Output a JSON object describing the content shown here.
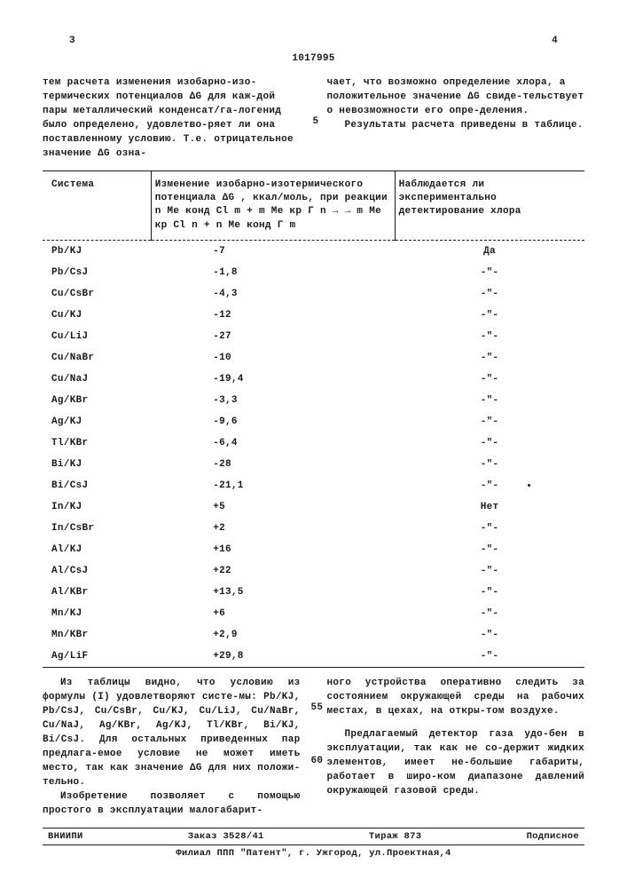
{
  "header": {
    "page_left": "3",
    "doc_number": "1017995",
    "page_right": "4"
  },
  "intro_left": "тем расчета изменения изобарно-изо-термических потенциалов ΔG для каж-дой пары металлический конденсат/га-логенид было определено, удовлетво-ряет ли она поставленному условию. Т.е. отрицательное значение ΔG озна-",
  "intro_right": "чает, что возможно определение хлора, а положительное значение ΔG свиде-тельствует о невозможности его опре-деления.",
  "intro_right_p2": "Результаты расчета приведены в таблице.",
  "line5": "5",
  "table": {
    "headers": {
      "col1": "Система",
      "col2": "Изменение изобарно-изотермического потенциала ΔG , ккал/моль, при реакции  n Me конд Cl m + m Me кр Г n → → m Me кр Cl n + n Me конд Г m",
      "col3": "Наблюдается ли экспериментально детектирование хлора"
    },
    "rows": [
      {
        "sys": "Pb/KJ",
        "dg": "-7",
        "det": "Да"
      },
      {
        "sys": "Pb/CsJ",
        "dg": "-1,8",
        "det": "-\"-"
      },
      {
        "sys": "Cu/CsBr",
        "dg": "-4,3",
        "det": "-\"-"
      },
      {
        "sys": "Cu/KJ",
        "dg": "-12",
        "det": "-\"-"
      },
      {
        "sys": "Cu/LiJ",
        "dg": "-27",
        "det": "-\"-"
      },
      {
        "sys": "Cu/NaBr",
        "dg": "-10",
        "det": "-\"-"
      },
      {
        "sys": "Cu/NaJ",
        "dg": "-19,4",
        "det": "-\"-"
      },
      {
        "sys": "Ag/KBr",
        "dg": "-3,3",
        "det": "-\"-"
      },
      {
        "sys": "Ag/KJ",
        "dg": "-9,6",
        "det": "-\"-"
      },
      {
        "sys": "Tl/KBr",
        "dg": "-6,4",
        "det": "-\"-"
      },
      {
        "sys": "Bi/KJ",
        "dg": "-28",
        "det": "-\"-"
      },
      {
        "sys": "Bi/CsJ",
        "dg": "-21,1",
        "det": "-\"-"
      },
      {
        "sys": "In/KJ",
        "dg": "+5",
        "det": "Нет"
      },
      {
        "sys": "In/CsBr",
        "dg": "+2",
        "det": "-\"-"
      },
      {
        "sys": "Al/KJ",
        "dg": "+16",
        "det": "-\"-"
      },
      {
        "sys": "Al/CsJ",
        "dg": "+22",
        "det": "-\"-"
      },
      {
        "sys": "Al/KBr",
        "dg": "+13,5",
        "det": "-\"-"
      },
      {
        "sys": "Mn/KJ",
        "dg": "+6",
        "det": "-\"-"
      },
      {
        "sys": "Mn/KBr",
        "dg": "+2,9",
        "det": "-\"-"
      },
      {
        "sys": "Ag/LiF",
        "dg": "+29,8",
        "det": "-\"-"
      }
    ]
  },
  "body_left_p1": "Из таблицы видно, что условию из формулы (I) удовлетворяют систе-мы: Pb/KJ, Pb/CsJ, Cu/CsBr, Cu/KJ, Cu/LiJ, Cu/NaBr, Cu/NaJ, Ag/KBr, Ag/KJ, Tl/KBr, Bi/KJ, Bi/CsJ. Для остальных приведенных пар предлага-емое условие не может иметь место, так как значение ΔG для них положи-тельно.",
  "body_left_p2": "Изобретение позволяет с помощью простого в эксплуатации малогабарит-",
  "body_right_p1": "ного устройства оперативно следить за состоянием окружающей среды на рабочих местах, в цехах, на откры-том воздухе.",
  "body_right_p2": "Предлагаемый детектор газа удо-бен в эксплуатации, так как не со-держит жидких элементов, имеет не-большие габариты, работает в широ-ком диапазоне давлений окружающей газовой среды.",
  "line55": "55",
  "line60": "60",
  "footer": {
    "org": "ВНИИПИ",
    "order": "Заказ 3528/41",
    "tirage": "Тираж 873",
    "podpis": "Подписное",
    "filial": "Филиал ППП \"Патент\", г. Ужгород, ул.Проектная,4"
  }
}
